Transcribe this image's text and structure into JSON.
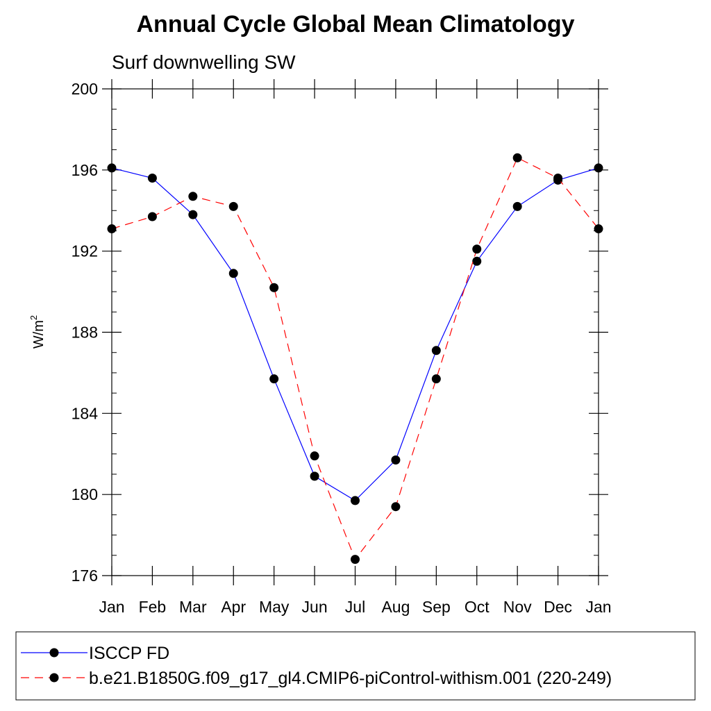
{
  "chart_data": {
    "type": "line",
    "title": "Annual Cycle Global Mean Climatology",
    "subtitle": "Surf downwelling SW",
    "xlabel": "",
    "ylabel_base": "W/m",
    "ylabel_sup": "2",
    "categories": [
      "Jan",
      "Feb",
      "Mar",
      "Apr",
      "May",
      "Jun",
      "Jul",
      "Aug",
      "Sep",
      "Oct",
      "Nov",
      "Dec",
      "Jan"
    ],
    "ylim": [
      176,
      200
    ],
    "yticks": [
      176,
      180,
      184,
      188,
      192,
      196,
      200
    ],
    "grid": false,
    "legend_position": "bottom",
    "series": [
      {
        "name": "ISCCP FD",
        "color": "#0000ff",
        "dash": "solid",
        "marker": "filled-circle",
        "values": [
          196.1,
          195.6,
          193.8,
          190.9,
          185.7,
          180.9,
          179.7,
          181.7,
          187.1,
          191.5,
          194.2,
          195.5,
          196.1
        ]
      },
      {
        "name": "b.e21.B1850G.f09_g17_gl4.CMIP6-piControl-withism.001 (220-249)",
        "color": "#ff0000",
        "dash": "dashed",
        "marker": "filled-circle",
        "values": [
          193.1,
          193.7,
          194.7,
          194.2,
          190.2,
          181.9,
          176.8,
          179.4,
          185.7,
          192.1,
          196.6,
          195.6,
          193.1
        ]
      }
    ]
  }
}
